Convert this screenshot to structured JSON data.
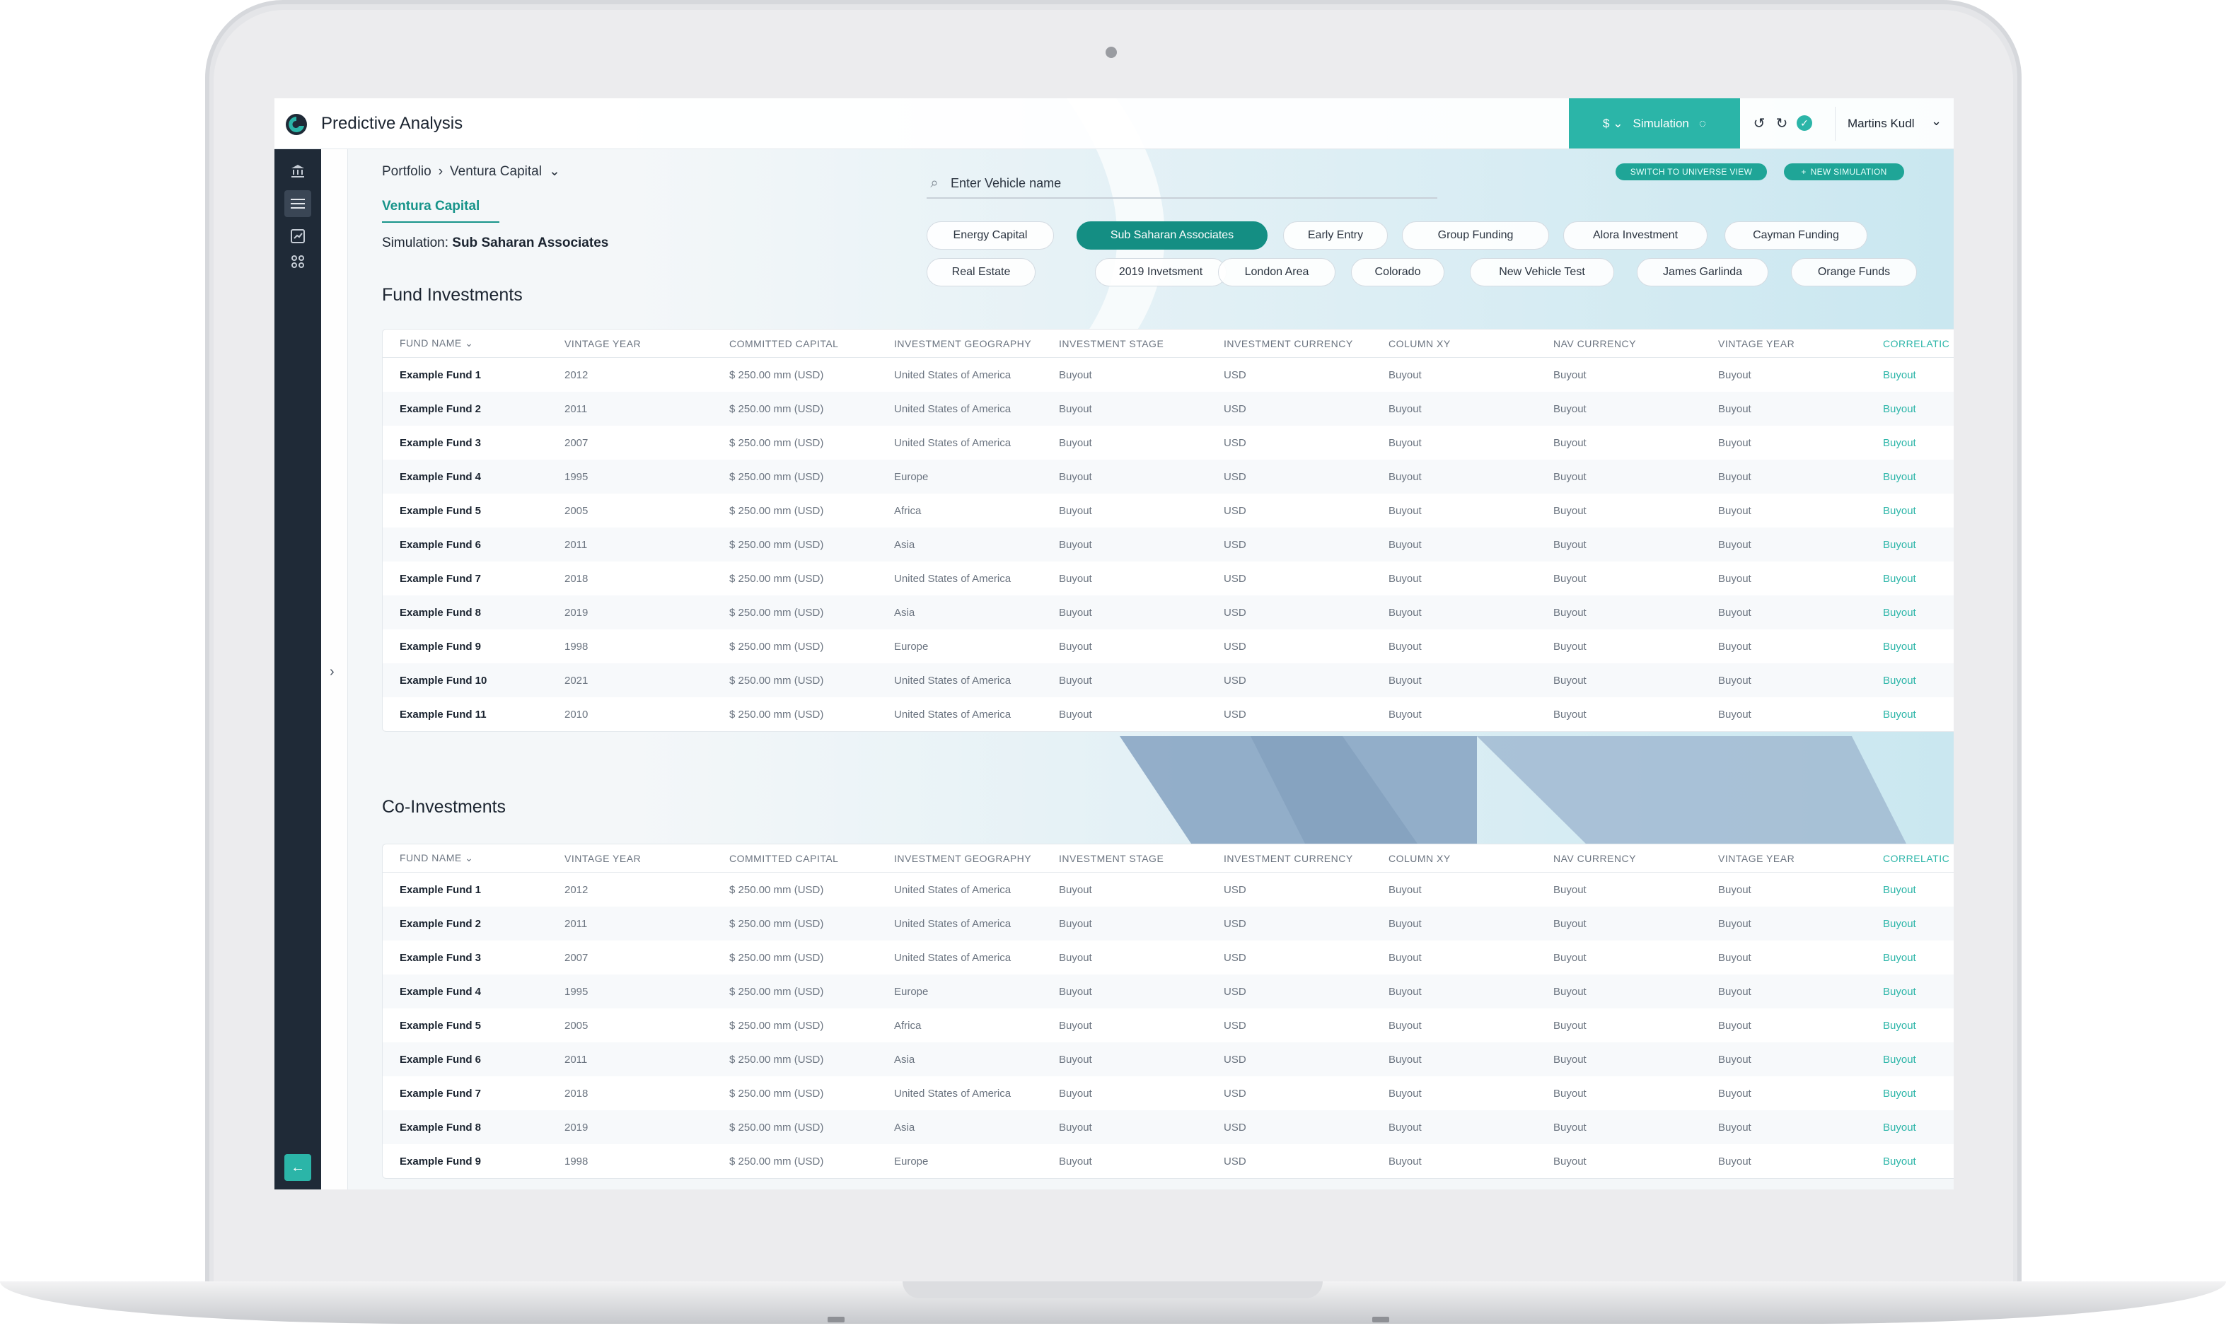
{
  "app": {
    "title": "Predictive Analysis"
  },
  "topbar": {
    "currency": "$",
    "simulation_label": "Simulation",
    "user_name": "Martins Kudl"
  },
  "breadcrumb": {
    "root": "Portfolio",
    "current": "Ventura Capital"
  },
  "sub_tab": "Ventura Capital",
  "simulation": {
    "prefix": "Simulation:",
    "name": "Sub Saharan Associates"
  },
  "search": {
    "placeholder": "Enter Vehicle name"
  },
  "actions": {
    "switch_view": "SWITCH TO UNIVERSE VIEW",
    "new_simulation": "NEW SIMULATION"
  },
  "chips_row1": [
    "Energy Capital",
    "Sub Saharan Associates",
    "Early Entry",
    "Group Funding",
    "Alora Investment",
    "Cayman Funding"
  ],
  "chips_row2": [
    "Real Estate",
    "2019 Invetsment",
    "London Area",
    "Colorado",
    "New Vehicle Test",
    "James Garlinda",
    "Orange Funds"
  ],
  "active_chip": "Sub Saharan Associates",
  "columns": [
    "FUND NAME",
    "VINTAGE YEAR",
    "COMMITTED CAPITAL",
    "INVESTMENT GEOGRAPHY",
    "INVESTMENT STAGE",
    "INVESTMENT CURRENCY",
    "COLUMN XY",
    "NAV CURRENCY",
    "VINTAGE YEAR",
    "CORRELATIC"
  ],
  "fund_investments": {
    "title": "Fund Investments",
    "rows": [
      [
        "Example Fund 1",
        "2012",
        "$ 250.00 mm (USD)",
        "United States of America",
        "Buyout",
        "USD",
        "Buyout",
        "Buyout",
        "Buyout",
        "Buyout"
      ],
      [
        "Example Fund 2",
        "2011",
        "$ 250.00 mm (USD)",
        "United States of America",
        "Buyout",
        "USD",
        "Buyout",
        "Buyout",
        "Buyout",
        "Buyout"
      ],
      [
        "Example Fund 3",
        "2007",
        "$ 250.00 mm (USD)",
        "United States of America",
        "Buyout",
        "USD",
        "Buyout",
        "Buyout",
        "Buyout",
        "Buyout"
      ],
      [
        "Example Fund 4",
        "1995",
        "$ 250.00 mm (USD)",
        "Europe",
        "Buyout",
        "USD",
        "Buyout",
        "Buyout",
        "Buyout",
        "Buyout"
      ],
      [
        "Example Fund 5",
        "2005",
        "$ 250.00 mm (USD)",
        "Africa",
        "Buyout",
        "USD",
        "Buyout",
        "Buyout",
        "Buyout",
        "Buyout"
      ],
      [
        "Example Fund 6",
        "2011",
        "$ 250.00 mm (USD)",
        "Asia",
        "Buyout",
        "USD",
        "Buyout",
        "Buyout",
        "Buyout",
        "Buyout"
      ],
      [
        "Example Fund 7",
        "2018",
        "$ 250.00 mm (USD)",
        "United States of America",
        "Buyout",
        "USD",
        "Buyout",
        "Buyout",
        "Buyout",
        "Buyout"
      ],
      [
        "Example Fund 8",
        "2019",
        "$ 250.00 mm (USD)",
        "Asia",
        "Buyout",
        "USD",
        "Buyout",
        "Buyout",
        "Buyout",
        "Buyout"
      ],
      [
        "Example Fund 9",
        "1998",
        "$ 250.00 mm (USD)",
        "Europe",
        "Buyout",
        "USD",
        "Buyout",
        "Buyout",
        "Buyout",
        "Buyout"
      ],
      [
        "Example Fund 10",
        "2021",
        "$ 250.00 mm (USD)",
        "United States of America",
        "Buyout",
        "USD",
        "Buyout",
        "Buyout",
        "Buyout",
        "Buyout"
      ],
      [
        "Example Fund 11",
        "2010",
        "$ 250.00 mm (USD)",
        "United States of America",
        "Buyout",
        "USD",
        "Buyout",
        "Buyout",
        "Buyout",
        "Buyout"
      ]
    ]
  },
  "co_investments": {
    "title": "Co-Investments",
    "rows": [
      [
        "Example Fund 1",
        "2012",
        "$ 250.00 mm (USD)",
        "United States of America",
        "Buyout",
        "USD",
        "Buyout",
        "Buyout",
        "Buyout",
        "Buyout"
      ],
      [
        "Example Fund 2",
        "2011",
        "$ 250.00 mm (USD)",
        "United States of America",
        "Buyout",
        "USD",
        "Buyout",
        "Buyout",
        "Buyout",
        "Buyout"
      ],
      [
        "Example Fund 3",
        "2007",
        "$ 250.00 mm (USD)",
        "United States of America",
        "Buyout",
        "USD",
        "Buyout",
        "Buyout",
        "Buyout",
        "Buyout"
      ],
      [
        "Example Fund 4",
        "1995",
        "$ 250.00 mm (USD)",
        "Europe",
        "Buyout",
        "USD",
        "Buyout",
        "Buyout",
        "Buyout",
        "Buyout"
      ],
      [
        "Example Fund 5",
        "2005",
        "$ 250.00 mm (USD)",
        "Africa",
        "Buyout",
        "USD",
        "Buyout",
        "Buyout",
        "Buyout",
        "Buyout"
      ],
      [
        "Example Fund 6",
        "2011",
        "$ 250.00 mm (USD)",
        "Asia",
        "Buyout",
        "USD",
        "Buyout",
        "Buyout",
        "Buyout",
        "Buyout"
      ],
      [
        "Example Fund 7",
        "2018",
        "$ 250.00 mm (USD)",
        "United States of America",
        "Buyout",
        "USD",
        "Buyout",
        "Buyout",
        "Buyout",
        "Buyout"
      ],
      [
        "Example Fund 8",
        "2019",
        "$ 250.00 mm (USD)",
        "Asia",
        "Buyout",
        "USD",
        "Buyout",
        "Buyout",
        "Buyout",
        "Buyout"
      ],
      [
        "Example Fund 9",
        "1998",
        "$ 250.00 mm (USD)",
        "Europe",
        "Buyout",
        "USD",
        "Buyout",
        "Buyout",
        "Buyout",
        "Buyout"
      ]
    ]
  },
  "colors": {
    "accent": "#2bb5a8",
    "accent_dark": "#148e83",
    "sidebar": "#1f2a37"
  },
  "icons": {
    "sidebar": [
      "bank-icon",
      "list-icon",
      "chart-icon",
      "grid-icon"
    ],
    "bottom": "arrow-left-icon"
  }
}
